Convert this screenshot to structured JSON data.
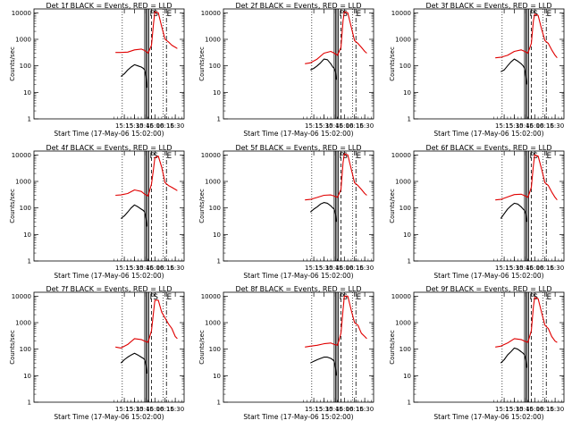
{
  "figure": {
    "xlabel": "Start Time (17-May-06 15:02:00)",
    "ylabel": "Counts/sec"
  },
  "colors": {
    "events": "#000000",
    "lld": "#e00000",
    "axes": "#000000"
  },
  "chart_data": {
    "type": "line",
    "yscale": "log",
    "xlabel": "Start Time (17-May-06 15:02:00)",
    "ylabel": "Counts/sec",
    "ylim": [
      1,
      14000
    ],
    "xlim": [
      "13:02",
      "16:43"
    ],
    "x_ticks": [
      "15:15",
      "15:30",
      "15:45",
      "16:00",
      "16:15",
      "16:30"
    ],
    "y_ticks": [
      "1",
      "10",
      "100",
      "1000",
      "10000"
    ],
    "panels": [
      {
        "title": "Det 1f BLACK = Events, RED = LLD",
        "markers": [
          "F",
          "S",
          "E"
        ],
        "series": [
          {
            "name": "Events",
            "color": "#000000",
            "x": [
              "15:10",
              "15:15",
              "15:20",
              "15:25",
              "15:30",
              "15:35",
              "15:40",
              "15:43",
              "15:45",
              "15:47",
              "15:48"
            ],
            "y": [
              40,
              50,
              70,
              90,
              110,
              100,
              90,
              80,
              70,
              40,
              15
            ]
          },
          {
            "name": "LLD",
            "color": "#e00000",
            "x": [
              "15:02",
              "15:10",
              "15:20",
              "15:30",
              "15:40",
              "15:45",
              "15:50",
              "15:55",
              "15:58",
              "16:00",
              "16:05",
              "16:10",
              "16:15",
              "16:20",
              "16:25",
              "16:30",
              "16:33"
            ],
            "y": [
              320,
              320,
              330,
              400,
              430,
              380,
              300,
              600,
              4000,
              11000,
              10000,
              3000,
              1000,
              800,
              600,
              500,
              450
            ]
          }
        ]
      },
      {
        "title": "Det 2f BLACK = Events, RED = LLD",
        "markers": [
          "F",
          "S",
          "E"
        ],
        "series": [
          {
            "name": "Events",
            "color": "#000000",
            "x": [
              "15:10",
              "15:15",
              "15:20",
              "15:25",
              "15:30",
              "15:35",
              "15:40",
              "15:43",
              "15:45",
              "15:47",
              "15:48"
            ],
            "y": [
              70,
              80,
              100,
              130,
              180,
              170,
              120,
              90,
              80,
              60,
              30
            ]
          },
          {
            "name": "LLD",
            "color": "#e00000",
            "x": [
              "15:02",
              "15:10",
              "15:20",
              "15:30",
              "15:40",
              "15:45",
              "15:50",
              "15:55",
              "15:58",
              "16:00",
              "16:05",
              "16:10",
              "16:15",
              "16:20",
              "16:25",
              "16:30",
              "16:33"
            ],
            "y": [
              120,
              130,
              180,
              300,
              350,
              300,
              250,
              500,
              5000,
              11000,
              10000,
              3000,
              900,
              700,
              500,
              350,
              300
            ]
          }
        ]
      },
      {
        "title": "Det 3f BLACK = Events, RED = LLD",
        "markers": [
          "F",
          "S",
          "E"
        ],
        "series": [
          {
            "name": "Events",
            "color": "#000000",
            "x": [
              "15:10",
              "15:15",
              "15:20",
              "15:25",
              "15:30",
              "15:35",
              "15:40",
              "15:43",
              "15:45",
              "15:47",
              "15:48"
            ],
            "y": [
              60,
              70,
              100,
              140,
              180,
              150,
              120,
              100,
              80,
              40,
              20
            ]
          },
          {
            "name": "LLD",
            "color": "#e00000",
            "x": [
              "15:02",
              "15:10",
              "15:20",
              "15:30",
              "15:40",
              "15:45",
              "15:50",
              "15:55",
              "15:58",
              "16:00",
              "16:05",
              "16:10",
              "16:15",
              "16:20",
              "16:25",
              "16:30",
              "16:33"
            ],
            "y": [
              200,
              210,
              250,
              350,
              400,
              350,
              300,
              700,
              5000,
              9000,
              8000,
              2500,
              900,
              700,
              400,
              250,
              200
            ]
          }
        ]
      },
      {
        "title": "Det 4f BLACK = Events, RED = LLD",
        "markers": [
          "F",
          "S",
          "E"
        ],
        "series": [
          {
            "name": "Events",
            "color": "#000000",
            "x": [
              "15:10",
              "15:15",
              "15:20",
              "15:25",
              "15:30",
              "15:35",
              "15:40",
              "15:43",
              "15:45",
              "15:47",
              "15:48"
            ],
            "y": [
              40,
              50,
              70,
              100,
              130,
              110,
              90,
              80,
              70,
              40,
              20
            ]
          },
          {
            "name": "LLD",
            "color": "#e00000",
            "x": [
              "15:02",
              "15:10",
              "15:20",
              "15:30",
              "15:40",
              "15:45",
              "15:50",
              "15:55",
              "15:58",
              "16:00",
              "16:05",
              "16:10",
              "16:15",
              "16:20",
              "16:25",
              "16:30",
              "16:33"
            ],
            "y": [
              300,
              310,
              350,
              480,
              420,
              330,
              280,
              800,
              3000,
              8000,
              9000,
              3500,
              900,
              700,
              600,
              500,
              450
            ]
          }
        ]
      },
      {
        "title": "Det 5f BLACK = Events, RED = LLD",
        "markers": [
          "F",
          "S",
          "E"
        ],
        "series": [
          {
            "name": "Events",
            "color": "#000000",
            "x": [
              "15:10",
              "15:15",
              "15:20",
              "15:25",
              "15:30",
              "15:35",
              "15:40",
              "15:43",
              "15:45",
              "15:47",
              "15:48"
            ],
            "y": [
              70,
              90,
              110,
              140,
              160,
              150,
              120,
              100,
              90,
              60,
              30
            ]
          },
          {
            "name": "LLD",
            "color": "#e00000",
            "x": [
              "15:02",
              "15:10",
              "15:20",
              "15:30",
              "15:40",
              "15:45",
              "15:50",
              "15:55",
              "15:58",
              "16:00",
              "16:05",
              "16:10",
              "16:15",
              "16:20",
              "16:25",
              "16:30",
              "16:33"
            ],
            "y": [
              200,
              210,
              250,
              300,
              310,
              280,
              250,
              500,
              5000,
              11000,
              10000,
              3000,
              900,
              700,
              500,
              350,
              300
            ]
          }
        ]
      },
      {
        "title": "Det 6f BLACK = Events, RED = LLD",
        "markers": [
          "F",
          "S",
          "E"
        ],
        "series": [
          {
            "name": "Events",
            "color": "#000000",
            "x": [
              "15:10",
              "15:15",
              "15:20",
              "15:25",
              "15:30",
              "15:35",
              "15:40",
              "15:43",
              "15:45",
              "15:47",
              "15:48"
            ],
            "y": [
              40,
              60,
              90,
              120,
              150,
              140,
              110,
              90,
              80,
              60,
              30
            ]
          },
          {
            "name": "LLD",
            "color": "#e00000",
            "x": [
              "15:02",
              "15:10",
              "15:20",
              "15:30",
              "15:40",
              "15:45",
              "15:50",
              "15:55",
              "15:58",
              "16:00",
              "16:05",
              "16:10",
              "16:15",
              "16:20",
              "16:25",
              "16:30",
              "16:33"
            ],
            "y": [
              200,
              210,
              260,
              320,
              330,
              290,
              250,
              600,
              4000,
              10000,
              9000,
              3000,
              900,
              700,
              400,
              250,
              200
            ]
          }
        ]
      },
      {
        "title": "Det 7f BLACK = Events, RED = LLD",
        "markers": [
          "F",
          "S",
          "E"
        ],
        "series": [
          {
            "name": "Events",
            "color": "#000000",
            "x": [
              "15:10",
              "15:15",
              "15:20",
              "15:25",
              "15:30",
              "15:35",
              "15:40",
              "15:43",
              "15:45",
              "15:47",
              "15:48"
            ],
            "y": [
              30,
              40,
              50,
              60,
              70,
              60,
              50,
              45,
              40,
              25,
              12
            ]
          },
          {
            "name": "LLD",
            "color": "#e00000",
            "x": [
              "15:02",
              "15:10",
              "15:20",
              "15:30",
              "15:40",
              "15:45",
              "15:50",
              "15:55",
              "15:58",
              "16:00",
              "16:05",
              "16:10",
              "16:15",
              "16:20",
              "16:25",
              "16:30",
              "16:33"
            ],
            "y": [
              120,
              110,
              150,
              250,
              230,
              200,
              180,
              500,
              2500,
              7000,
              7000,
              2500,
              1500,
              900,
              600,
              300,
              250
            ]
          }
        ]
      },
      {
        "title": "Det 8f BLACK = Events, RED = LLD",
        "markers": [
          "F",
          "S",
          "E"
        ],
        "series": [
          {
            "name": "Events",
            "color": "#000000",
            "x": [
              "15:10",
              "15:15",
              "15:20",
              "15:25",
              "15:30",
              "15:35",
              "15:40",
              "15:43",
              "15:45",
              "15:47",
              "15:48"
            ],
            "y": [
              30,
              35,
              40,
              45,
              50,
              50,
              45,
              40,
              35,
              20,
              10
            ]
          },
          {
            "name": "LLD",
            "color": "#e00000",
            "x": [
              "15:02",
              "15:10",
              "15:20",
              "15:30",
              "15:40",
              "15:45",
              "15:50",
              "15:55",
              "15:58",
              "16:00",
              "16:05",
              "16:10",
              "16:15",
              "16:20",
              "16:25",
              "16:30",
              "16:33"
            ],
            "y": [
              120,
              130,
              140,
              160,
              170,
              150,
              140,
              400,
              3000,
              10000,
              10000,
              3000,
              1000,
              800,
              400,
              300,
              250
            ]
          }
        ]
      },
      {
        "title": "Det 9f BLACK = Events, RED = LLD",
        "markers": [
          "F",
          "S",
          "E"
        ],
        "series": [
          {
            "name": "Events",
            "color": "#000000",
            "x": [
              "15:10",
              "15:15",
              "15:20",
              "15:25",
              "15:30",
              "15:35",
              "15:40",
              "15:43",
              "15:45",
              "15:47",
              "15:48"
            ],
            "y": [
              30,
              40,
              60,
              80,
              110,
              100,
              80,
              70,
              60,
              40,
              20
            ]
          },
          {
            "name": "LLD",
            "color": "#e00000",
            "x": [
              "15:02",
              "15:10",
              "15:20",
              "15:30",
              "15:40",
              "15:45",
              "15:50",
              "15:55",
              "15:58",
              "16:00",
              "16:05",
              "16:10",
              "16:15",
              "16:20",
              "16:25",
              "16:30",
              "16:33"
            ],
            "y": [
              120,
              130,
              170,
              250,
              230,
              200,
              180,
              500,
              4000,
              9000,
              8000,
              2500,
              800,
              600,
              300,
              200,
              180
            ]
          }
        ]
      }
    ]
  }
}
